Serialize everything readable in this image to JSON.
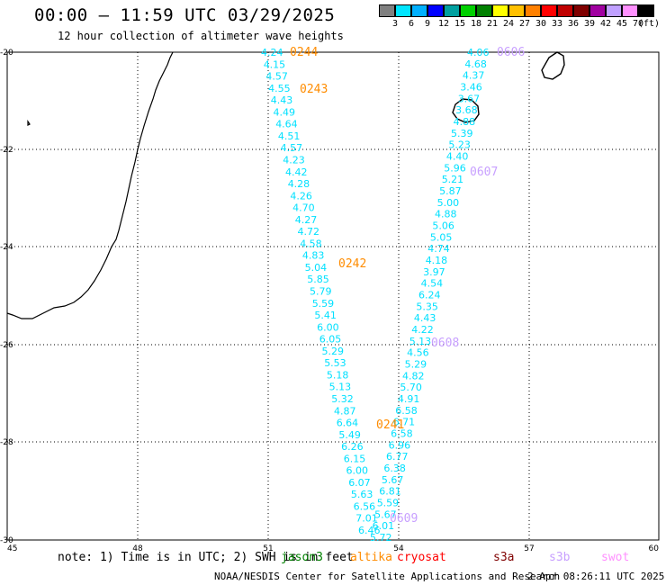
{
  "header": {
    "title": "00:00 – 11:59 UTC 03/29/2025",
    "subtitle": "12 hour collection of altimeter wave heights"
  },
  "legend": {
    "colors": [
      "#808080",
      "#00e5ff",
      "#00b0ff",
      "#0000ff",
      "#00a0a0",
      "#00d000",
      "#008000",
      "#ffff00",
      "#ffc000",
      "#ff8000",
      "#ff0000",
      "#c00000",
      "#800000",
      "#a000a0",
      "#c0a0ff",
      "#ff90ff",
      "#000000"
    ],
    "labels": [
      "3",
      "6",
      "9",
      "12",
      "15",
      "18",
      "21",
      "24",
      "27",
      "30",
      "33",
      "36",
      "39",
      "42",
      "45",
      "70",
      "(ft)"
    ]
  },
  "axes": {
    "x_ticks": [
      "45",
      "48",
      "51",
      "54",
      "57",
      "60"
    ],
    "y_ticks": [
      "-20",
      "-22",
      "-24",
      "-26",
      "-28",
      "-30"
    ]
  },
  "track_labels": [
    {
      "text": "0244",
      "color": "#ff8c00"
    },
    {
      "text": "0243",
      "color": "#ff8c00"
    },
    {
      "text": "0242",
      "color": "#ff8c00"
    },
    {
      "text": "0241",
      "color": "#ff8c00"
    },
    {
      "text": "0606",
      "color": "#c8a0ff"
    },
    {
      "text": "0607",
      "color": "#c8a0ff"
    },
    {
      "text": "0608",
      "color": "#c8a0ff"
    },
    {
      "text": "0609",
      "color": "#c8a0ff"
    }
  ],
  "track_a_values": [
    "4.24",
    "4.15",
    "4.57",
    "4.55",
    "4.43",
    "4.49",
    "4.64",
    "4.51",
    "4.57",
    "4.23",
    "4.42",
    "4.28",
    "4.26",
    "4.70",
    "4.27",
    "4.72",
    "4.58",
    "4.83",
    "5.04",
    "5.85",
    "5.79",
    "5.59",
    "5.41",
    "6.00",
    "6.05",
    "5.29",
    "5.53",
    "5.18",
    "5.13",
    "5.32",
    "4.87",
    "6.64",
    "5.49",
    "6.26",
    "6.15",
    "6.00",
    "6.07",
    "5.63",
    "6.56",
    "7.01",
    "6.46"
  ],
  "track_b_values": [
    "4.06",
    "4.68",
    "4.37",
    "3.46",
    "3.67",
    "3.68",
    "4.88",
    "5.39",
    "5.23",
    "4.40",
    "5.96",
    "5.21",
    "5.87",
    "5.00",
    "4.88",
    "5.06",
    "5.05",
    "4.74",
    "4.18",
    "3.97",
    "4.54",
    "6.24",
    "5.35",
    "4.43",
    "4.22",
    "5.13",
    "4.56",
    "5.29",
    "4.82",
    "5.70",
    "4.91",
    "6.58",
    "6.71",
    "6.58",
    "6.96",
    "6.77",
    "6.38",
    "5.67",
    "6.81",
    "5.59",
    "5.67",
    "6.01",
    "5.72"
  ],
  "note": {
    "text": "note: 1) Time is in UTC; 2) SWH is in feet",
    "satellites": [
      {
        "name": "jason3",
        "color": "#008000"
      },
      {
        "name": "altika",
        "color": "#ff8c00"
      },
      {
        "name": "cryosat",
        "color": "#ff0000"
      },
      {
        "name": "s3a",
        "color": "#800000"
      },
      {
        "name": "s3b",
        "color": "#c8a0ff"
      },
      {
        "name": "swot",
        "color": "#ff90ff"
      }
    ]
  },
  "footer": {
    "center": "NOAA/NESDIS Center for Satellite Applications and Research",
    "timestamp": "2 Apr 08:26:11 UTC 2025"
  },
  "colors": {
    "track_values": "#00e0ff",
    "coastline": "#000000",
    "grid": "#000000"
  }
}
